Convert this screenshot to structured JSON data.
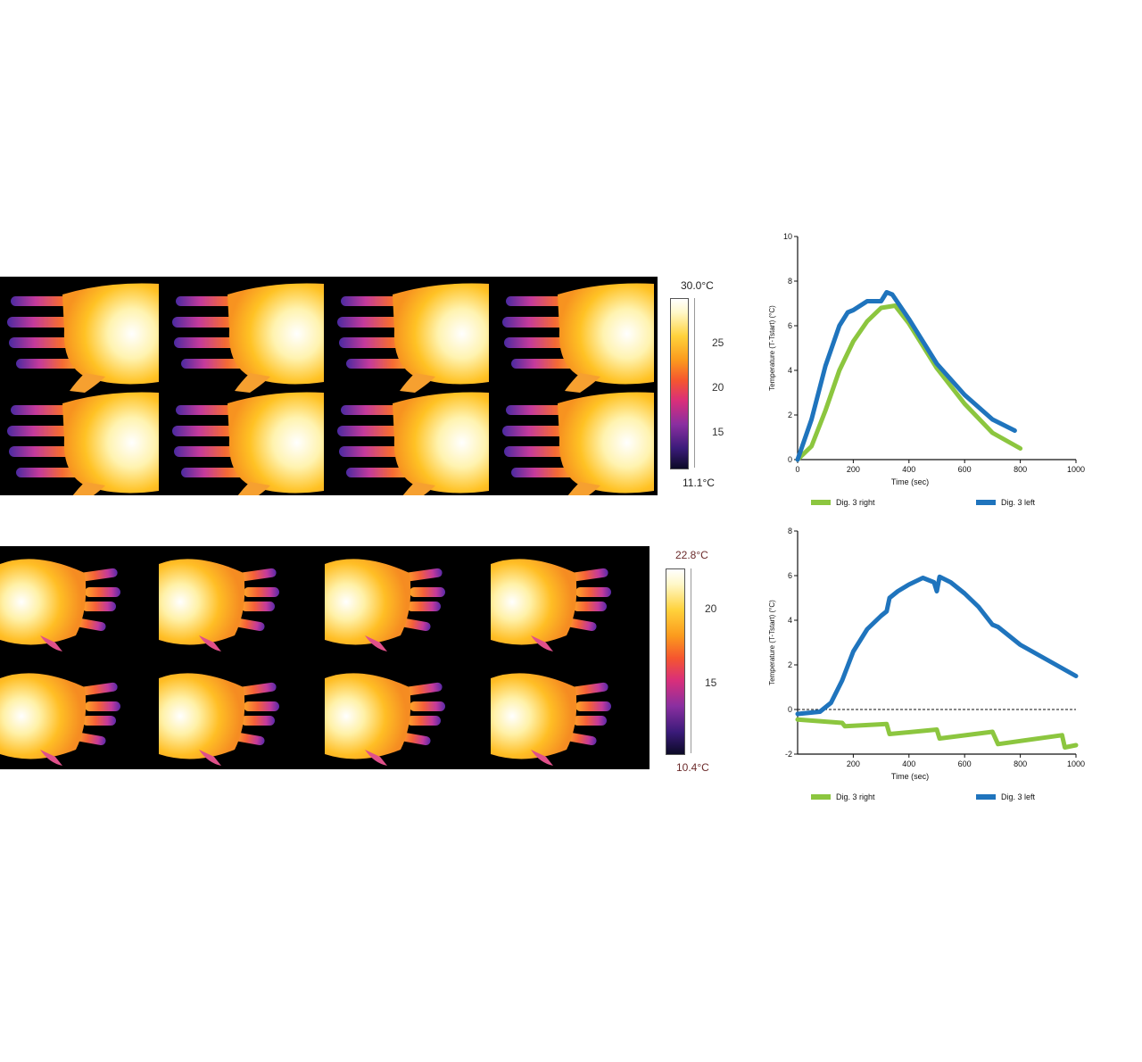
{
  "colors": {
    "right": "#8cc63f",
    "left": "#1f74bd",
    "thermal": [
      "#0b0a26",
      "#3b1b7a",
      "#8a2fa0",
      "#d92f7a",
      "#f5562f",
      "#fb9a1d",
      "#ffd23b",
      "#fff8c9",
      "#ffffff"
    ]
  },
  "thermal_top": {
    "colorbar": {
      "max_label": "30.0°C",
      "min_label": "11.1°C",
      "ticks": [
        "25",
        "20",
        "15"
      ],
      "min": 11.1,
      "max": 30.0,
      "tick_values": [
        25,
        20,
        15
      ]
    }
  },
  "thermal_bottom": {
    "colorbar": {
      "max_label": "22.8°C",
      "min_label": "10.4°C",
      "ticks": [
        "20",
        "15"
      ],
      "min": 10.4,
      "max": 22.8,
      "tick_values": [
        20,
        15
      ]
    }
  },
  "chart_data": [
    {
      "type": "line",
      "xlabel": "Time (sec)",
      "ylabel": "Temperature (T-Tstart) (°C)",
      "xlim": [
        0,
        1000
      ],
      "ylim": [
        0,
        10
      ],
      "xticks": [
        0,
        200,
        400,
        600,
        800,
        1000
      ],
      "yticks": [
        0,
        2,
        4,
        6,
        8,
        10
      ],
      "grid": false,
      "legend": "bottom",
      "series": [
        {
          "name": "Dig. 3 right",
          "x": [
            0,
            50,
            100,
            150,
            200,
            250,
            300,
            350,
            400,
            500,
            600,
            700,
            800
          ],
          "y": [
            0,
            0.6,
            2.2,
            4.0,
            5.3,
            6.2,
            6.8,
            6.9,
            6.1,
            4.1,
            2.5,
            1.2,
            0.5
          ]
        },
        {
          "name": "Dig. 3 left",
          "x": [
            0,
            50,
            100,
            150,
            180,
            200,
            250,
            300,
            320,
            340,
            400,
            500,
            600,
            700,
            780
          ],
          "y": [
            0,
            1.8,
            4.2,
            6.0,
            6.6,
            6.7,
            7.1,
            7.1,
            7.5,
            7.4,
            6.3,
            4.3,
            2.9,
            1.8,
            1.3
          ]
        }
      ]
    },
    {
      "type": "line",
      "xlabel": "Time (sec)",
      "ylabel": "Temperature (T-Tstart) (°C)",
      "xlim": [
        0,
        1000
      ],
      "ylim": [
        -2,
        8
      ],
      "xticks": [
        200,
        400,
        600,
        800,
        1000
      ],
      "yticks": [
        -2,
        0,
        2,
        4,
        6,
        8
      ],
      "grid": false,
      "zero_line": true,
      "legend": "bottom",
      "series": [
        {
          "name": "Dig. 3 right",
          "x": [
            0,
            160,
            170,
            320,
            330,
            500,
            510,
            700,
            720,
            950,
            960,
            1000
          ],
          "y": [
            -0.45,
            -0.6,
            -0.75,
            -0.65,
            -1.1,
            -0.9,
            -1.3,
            -1.0,
            -1.55,
            -1.15,
            -1.7,
            -1.6
          ]
        },
        {
          "name": "Dig. 3 left",
          "x": [
            0,
            80,
            120,
            160,
            200,
            250,
            300,
            320,
            330,
            360,
            400,
            450,
            490,
            500,
            510,
            550,
            600,
            650,
            700,
            720,
            750,
            800,
            900,
            1000
          ],
          "y": [
            -0.2,
            -0.1,
            0.3,
            1.3,
            2.6,
            3.6,
            4.2,
            4.4,
            5.0,
            5.3,
            5.6,
            5.9,
            5.7,
            5.3,
            5.95,
            5.7,
            5.2,
            4.6,
            3.8,
            3.7,
            3.4,
            2.9,
            2.2,
            1.5
          ]
        }
      ]
    }
  ]
}
